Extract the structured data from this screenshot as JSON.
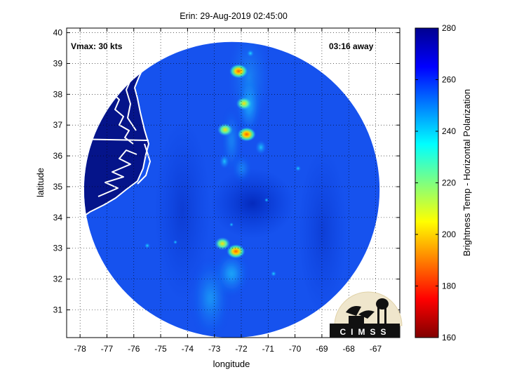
{
  "chart_data": {
    "type": "heatmap",
    "title": "Erin: 29-Aug-2019 02:45:00",
    "xlabel": "longitude",
    "ylabel": "latitude",
    "xlim": [
      -78.5,
      -66.1
    ],
    "ylim": [
      30.1,
      40.15
    ],
    "x_ticks": [
      -78,
      -77,
      -76,
      -75,
      -74,
      -73,
      -72,
      -71,
      -70,
      -69,
      -68,
      -67
    ],
    "y_ticks": [
      31,
      32,
      33,
      34,
      35,
      36,
      37,
      38,
      39,
      40
    ],
    "grid": true,
    "annotations": {
      "vmax": "Vmax: 30 kts",
      "away": "03:16 away"
    },
    "swath": {
      "center_lon": -72.35,
      "center_lat": 34.9,
      "radius_deg_lat": 4.8,
      "background_value": 262
    },
    "colorbar": {
      "label": "Brightness Temp - Horizontal Polarization",
      "min": 160,
      "max": 280,
      "ticks": [
        160,
        180,
        200,
        220,
        240,
        260,
        280
      ],
      "colormap": "jet"
    },
    "features": [
      {
        "type": "land",
        "value": 278
      },
      {
        "type": "cold_core",
        "lon": -72.1,
        "lat": 38.75,
        "value": 195
      },
      {
        "type": "cold_core",
        "lon": -71.9,
        "lat": 37.7,
        "value": 215
      },
      {
        "type": "cold_core",
        "lon": -71.8,
        "lat": 36.7,
        "value": 205
      },
      {
        "type": "cold_core",
        "lon": -72.6,
        "lat": 36.85,
        "value": 215
      },
      {
        "type": "cold_core",
        "lon": -72.2,
        "lat": 32.9,
        "value": 195
      },
      {
        "type": "cold_core",
        "lon": -72.7,
        "lat": 33.15,
        "value": 210
      }
    ],
    "logo_text": "CIMSS"
  }
}
